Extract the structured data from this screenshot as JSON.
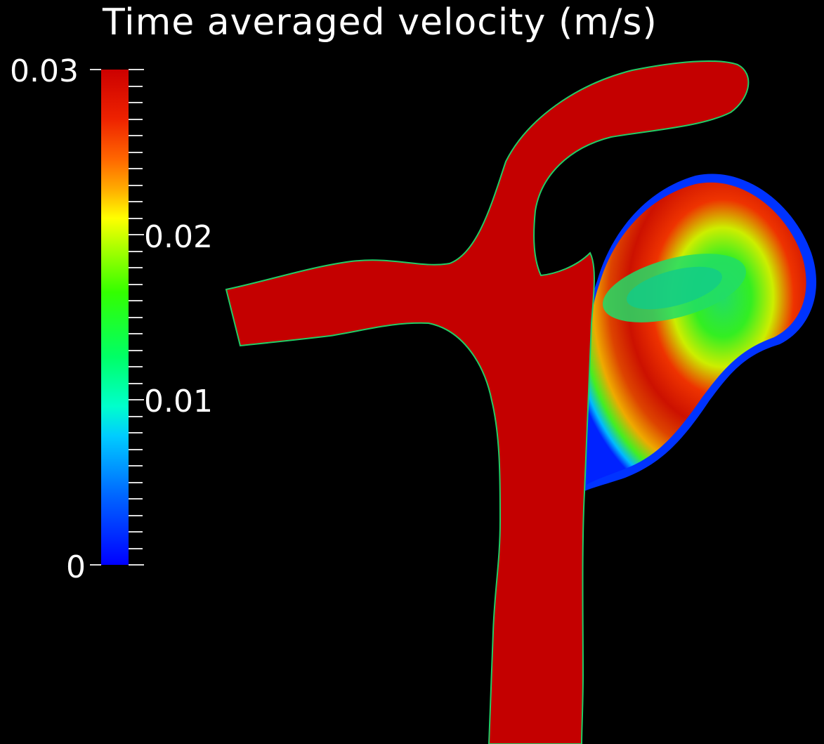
{
  "title": "Time averaged velocity (m/s)",
  "colorbar": {
    "max_label": "0.03",
    "mid_high_label": "0.02",
    "mid_low_label": "0.01",
    "min_label": "0",
    "colors": {
      "high": "#cc0000",
      "upper": "#ff8800",
      "mid": "#33ff00",
      "lower": "#00ffcc",
      "low": "#0000ff"
    }
  },
  "background": "#000000"
}
